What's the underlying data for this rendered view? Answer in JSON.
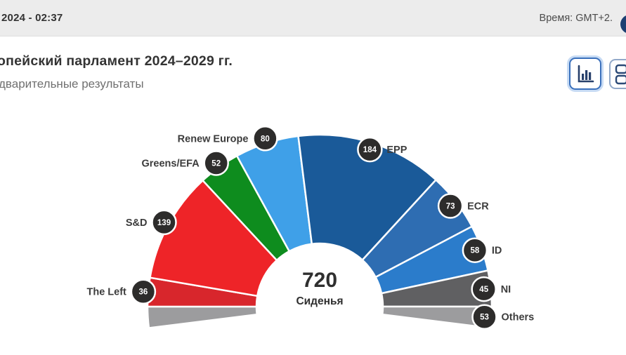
{
  "top_bar": {
    "datetime": "2024 - 02:37",
    "timezone_label": "Время: GMT+2."
  },
  "header": {
    "title": "опейский парламент 2024–2029 гг.",
    "subtitle": "дварительные результаты"
  },
  "toolbar": {
    "buttons": [
      {
        "icon": "bar-chart-icon",
        "active": true
      },
      {
        "icon": "seat-grid-icon",
        "active": false
      }
    ]
  },
  "chart_data": {
    "type": "hemicycle",
    "total_seats": 720,
    "center_label": {
      "value": "720",
      "caption": "Сиденья"
    },
    "badge_color": "#2d2c2b",
    "badge_text_color": "#ffffff",
    "label_color": "#3c3c3c",
    "parties": [
      {
        "name": "The Left",
        "seats": 36,
        "color": "#d8262c"
      },
      {
        "name": "S&D",
        "seats": 139,
        "color": "#ee2428"
      },
      {
        "name": "Greens/EFA",
        "seats": 52,
        "color": "#0e8c1e"
      },
      {
        "name": "Renew Europe",
        "seats": 80,
        "color": "#3fa0e8"
      },
      {
        "name": "EPP",
        "seats": 184,
        "color": "#1a5a99"
      },
      {
        "name": "ECR",
        "seats": 73,
        "color": "#2e6db2"
      },
      {
        "name": "ID",
        "seats": 58,
        "color": "#2b7ccb"
      },
      {
        "name": "NI",
        "seats": 45,
        "color": "#606062"
      },
      {
        "name": "Others",
        "seats": 53,
        "color": "#9c9c9e",
        "split_both_ends": true
      }
    ]
  }
}
